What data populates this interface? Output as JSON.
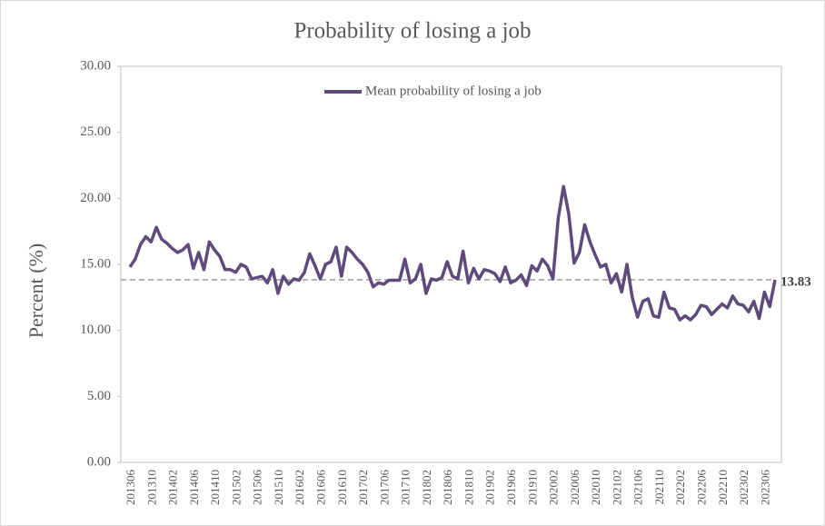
{
  "chart_data": {
    "type": "line",
    "title": "Probability  of losing  a job",
    "y_label": "Percent (%)",
    "categories": [
      "201306",
      null,
      null,
      null,
      "201310",
      null,
      null,
      null,
      "201402",
      null,
      null,
      null,
      "201406",
      null,
      null,
      null,
      "201410",
      null,
      null,
      null,
      "201502",
      null,
      null,
      null,
      "201506",
      null,
      null,
      null,
      "201510",
      null,
      null,
      null,
      "201602",
      null,
      null,
      null,
      "201606",
      null,
      null,
      null,
      "201610",
      null,
      null,
      null,
      "201702",
      null,
      null,
      null,
      "201706",
      null,
      null,
      null,
      "201710",
      null,
      null,
      null,
      "201802",
      null,
      null,
      null,
      "201806",
      null,
      null,
      null,
      "201810",
      null,
      null,
      null,
      "201902",
      null,
      null,
      null,
      "201906",
      null,
      null,
      null,
      "201910",
      null,
      null,
      null,
      "202002",
      null,
      null,
      null,
      "202006",
      null,
      null,
      null,
      "202010",
      null,
      null,
      null,
      "202102",
      null,
      null,
      null,
      "202106",
      null,
      null,
      null,
      "202110",
      null,
      null,
      null,
      "202202",
      null,
      null,
      null,
      "202206",
      null,
      null,
      null,
      "202210",
      null,
      null,
      null,
      "202302",
      null,
      null,
      null,
      "202306",
      null,
      null
    ],
    "series": [
      {
        "name": "Mean probability of losing a job",
        "color": "#5e4b7c",
        "values": [
          14.8,
          15.4,
          16.5,
          17.1,
          16.7,
          17.8,
          16.9,
          16.6,
          16.2,
          15.9,
          16.1,
          16.5,
          14.7,
          15.9,
          14.6,
          16.7,
          16.1,
          15.6,
          14.6,
          14.6,
          14.4,
          15.0,
          14.8,
          13.9,
          14.0,
          14.1,
          13.6,
          14.6,
          12.8,
          14.1,
          13.5,
          13.9,
          13.8,
          14.4,
          15.8,
          14.9,
          13.9,
          15.0,
          15.2,
          16.3,
          14.1,
          16.3,
          15.9,
          15.4,
          15.0,
          14.4,
          13.3,
          13.6,
          13.5,
          13.8,
          13.8,
          13.8,
          15.4,
          13.6,
          13.9,
          15.0,
          12.8,
          13.9,
          13.8,
          14.0,
          15.2,
          14.1,
          13.9,
          16.0,
          13.6,
          14.7,
          13.9,
          14.6,
          14.5,
          14.3,
          13.7,
          14.8,
          13.6,
          13.8,
          14.2,
          13.4,
          14.9,
          14.5,
          15.4,
          14.9,
          13.9,
          18.5,
          20.9,
          18.8,
          15.1,
          15.9,
          18.0,
          16.7,
          15.7,
          14.8,
          15.0,
          13.6,
          14.3,
          12.9,
          15.0,
          12.5,
          11.0,
          12.2,
          12.4,
          11.1,
          11.0,
          12.9,
          11.7,
          11.6,
          10.8,
          11.1,
          10.8,
          11.2,
          11.9,
          11.8,
          11.2,
          11.6,
          12.0,
          11.7,
          12.6,
          12.0,
          11.9,
          11.4,
          12.2,
          10.9,
          12.9,
          11.8,
          13.83
        ]
      }
    ],
    "ylim": [
      0,
      30
    ],
    "yticks": [
      {
        "value": 0,
        "label": "0.00"
      },
      {
        "value": 5,
        "label": "5.00"
      },
      {
        "value": 10,
        "label": "10.00"
      },
      {
        "value": 15,
        "label": "15.00"
      },
      {
        "value": 20,
        "label": "20.00"
      },
      {
        "value": 25,
        "label": "25.00"
      },
      {
        "value": 30,
        "label": "30.00"
      }
    ],
    "last_value_line": true,
    "legend": "top"
  }
}
